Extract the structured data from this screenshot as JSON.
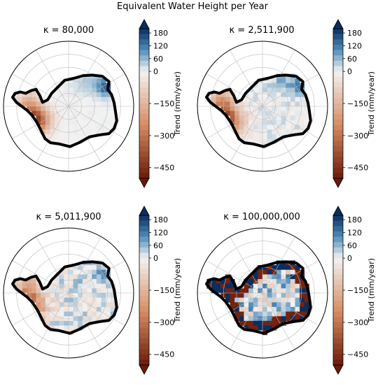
{
  "figure": {
    "title": "Equivalent Water Height per Year"
  },
  "colors": {
    "negative_end": "#6b1a08",
    "zero": "#f2f2f2",
    "positive_end": "#0a2e60"
  },
  "chart_data": [
    {
      "type": "heatmap",
      "title": "κ =  80,000",
      "colorbar_label": "Trend (mm/year)",
      "clim": [
        -500,
        200
      ],
      "colorbar_ticks": [
        180,
        120,
        60,
        0,
        -150,
        -300,
        -450
      ],
      "map": "Antarctica, south polar stereographic"
    },
    {
      "type": "heatmap",
      "title": "κ =  2,511,900",
      "colorbar_label": "Trend (mm/year)",
      "clim": [
        -500,
        200
      ],
      "colorbar_ticks": [
        180,
        120,
        60,
        0,
        -150,
        -300,
        -450
      ],
      "map": "Antarctica, south polar stereographic"
    },
    {
      "type": "heatmap",
      "title": "κ =  5,011,900",
      "colorbar_label": "Trend (mm/year)",
      "clim": [
        -500,
        200
      ],
      "colorbar_ticks": [
        180,
        120,
        60,
        0,
        -150,
        -300,
        -450
      ],
      "map": "Antarctica, south polar stereographic"
    },
    {
      "type": "heatmap",
      "title": "κ =  100,000,000",
      "colorbar_label": "Trend (mm/year)",
      "clim": [
        -500,
        200
      ],
      "colorbar_ticks": [
        180,
        120,
        60,
        0,
        -150,
        -300,
        -450
      ],
      "map": "Antarctica, south polar stereographic"
    }
  ]
}
